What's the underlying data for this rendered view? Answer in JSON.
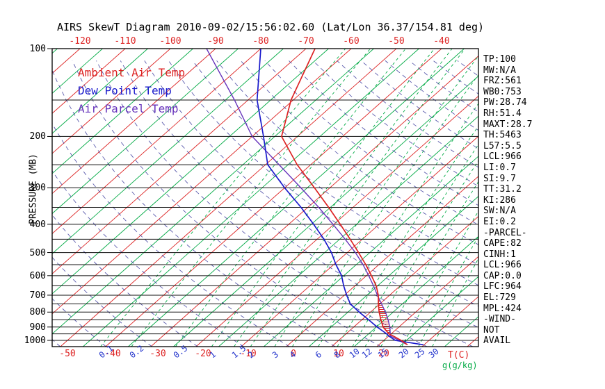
{
  "title": "AIRS SkewT Diagram 2010-09-02/15:56:02.60 (Lat/Lon 36.37/154.81 deg)",
  "legend": [
    {
      "label": "Ambient Air Temp",
      "color": "#dd2222"
    },
    {
      "label": "Dew Point Temp",
      "color": "#1a1acc"
    },
    {
      "label": "Air Parcel Temp",
      "color": "#6633bb"
    }
  ],
  "axes": {
    "pressure_axis_label": "PRESSURE (MB)",
    "pressure_tick_labels": [
      100,
      200,
      300,
      400,
      500,
      600,
      700,
      800,
      900,
      1000
    ],
    "pressure_gridlines": [
      100,
      150,
      200,
      250,
      300,
      350,
      400,
      450,
      500,
      550,
      600,
      650,
      700,
      750,
      800,
      850,
      900,
      950,
      1000
    ],
    "top_temperature_labels": [
      -120,
      -110,
      -100,
      -90,
      -80,
      -70,
      -60,
      -50,
      -40
    ],
    "bottom_temperature_labels": [
      -50,
      -40,
      -30,
      -20,
      -10,
      0,
      10,
      20
    ],
    "temp_unit_label": "T(C)",
    "mixing_unit_label": "g(g/kg)",
    "mixing_ratio_lines_g_per_kg": [
      0.1,
      0.2,
      0.5,
      1,
      1.5,
      2,
      3,
      4,
      6,
      8,
      10,
      12,
      15,
      20,
      25,
      30
    ]
  },
  "stats_panel": {
    "lines": [
      "TP:100",
      "MW:N/A",
      "FRZ:561",
      "WB0:753",
      "PW:28.74",
      "RH:51.4",
      "MAXT:28.7",
      "TH:5463",
      "L57:5.5",
      "LCL:966",
      "LI:0.7",
      "SI:9.7",
      "TT:31.2",
      "KI:286",
      "SW:N/A",
      "EI:0.2",
      "-PARCEL-",
      "CAPE:82",
      "CINH:1",
      "LCL:966",
      "CAP:0.0",
      "LFC:964",
      "EL:729",
      "MPL:424",
      "-WIND-",
      "NOT",
      "AVAIL"
    ]
  },
  "chart_data": {
    "type": "line",
    "projection": "skew-t log-p",
    "x_axis": {
      "label": "Temperature",
      "unit": "C"
    },
    "y_axis": {
      "label": "PRESSURE (MB)",
      "unit": "mb",
      "scale": "log",
      "range": [
        100,
        1050
      ]
    },
    "grid": true,
    "legend_position": "top-left-inside",
    "background": {
      "red_isotherms_C": {
        "min": -180,
        "max": 60,
        "step": 10
      },
      "green_isotherms_C": {
        "min": -175,
        "max": 55,
        "step": 5
      },
      "dry_adiabats_theta_K": {
        "min": 220,
        "max": 450,
        "step": 10
      },
      "mixing_ratio_lines_g_per_kg": [
        0.1,
        0.2,
        0.5,
        1,
        1.5,
        2,
        3,
        4,
        6,
        8,
        10,
        12,
        15,
        20,
        25,
        30
      ]
    },
    "series": [
      {
        "name": "Ambient Air Temp",
        "color": "#dd2222",
        "points_p_T": [
          [
            1035,
            26.3
          ],
          [
            1000,
            23.8
          ],
          [
            966,
            21.0
          ],
          [
            950,
            19.5
          ],
          [
            900,
            16.5
          ],
          [
            850,
            14.2
          ],
          [
            800,
            11.9
          ],
          [
            750,
            9.7
          ],
          [
            700,
            7.5
          ],
          [
            650,
            4.7
          ],
          [
            600,
            1.1
          ],
          [
            550,
            -2.9
          ],
          [
            500,
            -7.5
          ],
          [
            450,
            -12.7
          ],
          [
            400,
            -18.6
          ],
          [
            350,
            -25.4
          ],
          [
            300,
            -33.4
          ],
          [
            250,
            -43.0
          ],
          [
            200,
            -53.5
          ],
          [
            150,
            -60.5
          ],
          [
            100,
            -68.0
          ]
        ]
      },
      {
        "name": "Dew Point Temp",
        "color": "#1a1acc",
        "points_p_T": [
          [
            1035,
            29.8
          ],
          [
            1000,
            22.5
          ],
          [
            966,
            20.0
          ],
          [
            950,
            19.0
          ],
          [
            900,
            15.2
          ],
          [
            850,
            11.5
          ],
          [
            800,
            7.5
          ],
          [
            750,
            3.5
          ],
          [
            700,
            0.5
          ],
          [
            650,
            -2.5
          ],
          [
            600,
            -5.5
          ],
          [
            550,
            -9.5
          ],
          [
            500,
            -13.5
          ],
          [
            450,
            -18.5
          ],
          [
            400,
            -24.5
          ],
          [
            350,
            -31.5
          ],
          [
            300,
            -40.0
          ],
          [
            250,
            -49.5
          ],
          [
            200,
            -57.5
          ],
          [
            150,
            -68.0
          ],
          [
            100,
            -80.0
          ]
        ]
      },
      {
        "name": "Air Parcel Temp",
        "color": "#6633bb",
        "points_p_T": [
          [
            1035,
            26.3
          ],
          [
            1000,
            23.3
          ],
          [
            966,
            20.4
          ],
          [
            950,
            19.8
          ],
          [
            900,
            18.0
          ],
          [
            850,
            15.8
          ],
          [
            800,
            13.3
          ],
          [
            750,
            10.4
          ],
          [
            700,
            7.3
          ],
          [
            650,
            4.1
          ],
          [
            600,
            0.5
          ],
          [
            550,
            -3.5
          ],
          [
            500,
            -8.2
          ],
          [
            450,
            -13.8
          ],
          [
            400,
            -20.2
          ],
          [
            350,
            -27.6
          ],
          [
            300,
            -36.4
          ],
          [
            250,
            -47.0
          ],
          [
            200,
            -60.0
          ],
          [
            150,
            -73.0
          ],
          [
            100,
            -92.0
          ]
        ]
      }
    ],
    "cape_hatch_region": {
      "pressure_range_mb": [
        958,
        729
      ],
      "between": [
        "Air Parcel Temp",
        "Ambient Air Temp"
      ]
    }
  },
  "colors": {
    "background": "#ffffff",
    "frame": "#000000",
    "red_lines": "#dd2222",
    "green_lines": "#00aa44",
    "purple_dashed": "#3d3d9e",
    "hatch": "#dd2222"
  }
}
